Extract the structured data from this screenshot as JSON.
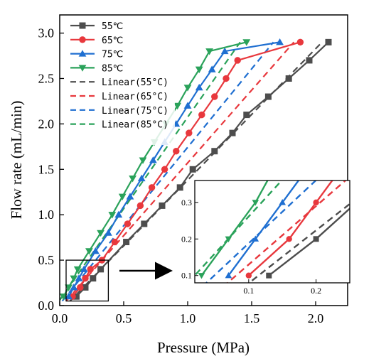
{
  "chart_data": {
    "type": "line",
    "xlabel": "Pressure (MPa)",
    "ylabel": "Flow rate (mL/min)",
    "xlim": [
      0.0,
      2.25
    ],
    "ylim": [
      0.0,
      3.2
    ],
    "xticks": [
      "0.0",
      "0.5",
      "1.0",
      "1.5",
      "2.0"
    ],
    "yticks": [
      "0.0",
      "0.5",
      "1.0",
      "1.5",
      "2.0",
      "2.5",
      "3.0"
    ],
    "legend_position": "top-left",
    "grid": false,
    "series": [
      {
        "name": "55℃",
        "marker": "square",
        "color": "#4d4d4d",
        "points": [
          [
            0.13,
            0.1
          ],
          [
            0.2,
            0.2
          ],
          [
            0.26,
            0.3
          ],
          [
            0.32,
            0.4
          ],
          [
            0.52,
            0.7
          ],
          [
            0.66,
            0.9
          ],
          [
            0.8,
            1.1
          ],
          [
            0.94,
            1.3
          ],
          [
            1.04,
            1.5
          ],
          [
            1.21,
            1.7
          ],
          [
            1.35,
            1.9
          ],
          [
            1.46,
            2.1
          ],
          [
            1.63,
            2.3
          ],
          [
            1.79,
            2.5
          ],
          [
            1.95,
            2.7
          ],
          [
            2.1,
            2.9
          ]
        ]
      },
      {
        "name": "65℃",
        "marker": "circle",
        "color": "#e8383d",
        "points": [
          [
            0.1,
            0.1
          ],
          [
            0.16,
            0.2
          ],
          [
            0.2,
            0.3
          ],
          [
            0.24,
            0.4
          ],
          [
            0.33,
            0.5
          ],
          [
            0.43,
            0.7
          ],
          [
            0.53,
            0.9
          ],
          [
            0.63,
            1.1
          ],
          [
            0.72,
            1.3
          ],
          [
            0.82,
            1.5
          ],
          [
            0.91,
            1.7
          ],
          [
            1.01,
            1.9
          ],
          [
            1.11,
            2.1
          ],
          [
            1.21,
            2.3
          ],
          [
            1.3,
            2.5
          ],
          [
            1.39,
            2.7
          ],
          [
            1.88,
            2.9
          ]
        ]
      },
      {
        "name": "75℃",
        "marker": "triangle-up",
        "color": "#1f6fd1",
        "points": [
          [
            0.07,
            0.1
          ],
          [
            0.11,
            0.2
          ],
          [
            0.15,
            0.3
          ],
          [
            0.19,
            0.4
          ],
          [
            0.28,
            0.6
          ],
          [
            0.38,
            0.8
          ],
          [
            0.46,
            1.0
          ],
          [
            0.55,
            1.2
          ],
          [
            0.64,
            1.4
          ],
          [
            0.73,
            1.6
          ],
          [
            0.82,
            1.8
          ],
          [
            0.91,
            2.0
          ],
          [
            1.0,
            2.2
          ],
          [
            1.09,
            2.4
          ],
          [
            1.19,
            2.6
          ],
          [
            1.29,
            2.8
          ],
          [
            1.72,
            2.9
          ]
        ]
      },
      {
        "name": "85℃",
        "marker": "triangle-down",
        "color": "#2aa25a",
        "points": [
          [
            0.03,
            0.1
          ],
          [
            0.07,
            0.2
          ],
          [
            0.11,
            0.3
          ],
          [
            0.14,
            0.4
          ],
          [
            0.23,
            0.6
          ],
          [
            0.32,
            0.8
          ],
          [
            0.41,
            1.0
          ],
          [
            0.49,
            1.2
          ],
          [
            0.57,
            1.4
          ],
          [
            0.65,
            1.6
          ],
          [
            0.74,
            1.8
          ],
          [
            0.83,
            2.0
          ],
          [
            0.92,
            2.2
          ],
          [
            1.0,
            2.4
          ],
          [
            1.09,
            2.6
          ],
          [
            1.17,
            2.8
          ],
          [
            1.46,
            2.9
          ]
        ]
      }
    ],
    "fits": [
      {
        "name": "Linear(55°C)",
        "color": "#4d4d4d",
        "x0": 0.08,
        "y0": 0.05,
        "x1": 2.05,
        "y1": 2.9
      },
      {
        "name": "Linear(65°C)",
        "color": "#e8383d",
        "x0": 0.05,
        "y0": 0.05,
        "x1": 1.83,
        "y1": 2.9
      },
      {
        "name": "Linear(75°C)",
        "color": "#1f6fd1",
        "x0": 0.02,
        "y0": 0.05,
        "x1": 1.67,
        "y1": 2.9
      },
      {
        "name": "Linear(85°C)",
        "color": "#2aa25a",
        "x0": 0.0,
        "y0": 0.06,
        "x1": 1.41,
        "y1": 2.9
      }
    ],
    "inset": {
      "xlim": [
        0.02,
        0.25
      ],
      "ylim": [
        0.08,
        0.36
      ],
      "xticks": [
        "0.1",
        "0.2"
      ],
      "yticks": [
        "0.1",
        "0.2",
        "0.3"
      ],
      "zoom_region": {
        "xlim": [
          0.05,
          0.38
        ],
        "ylim": [
          0.05,
          0.5
        ]
      }
    }
  }
}
